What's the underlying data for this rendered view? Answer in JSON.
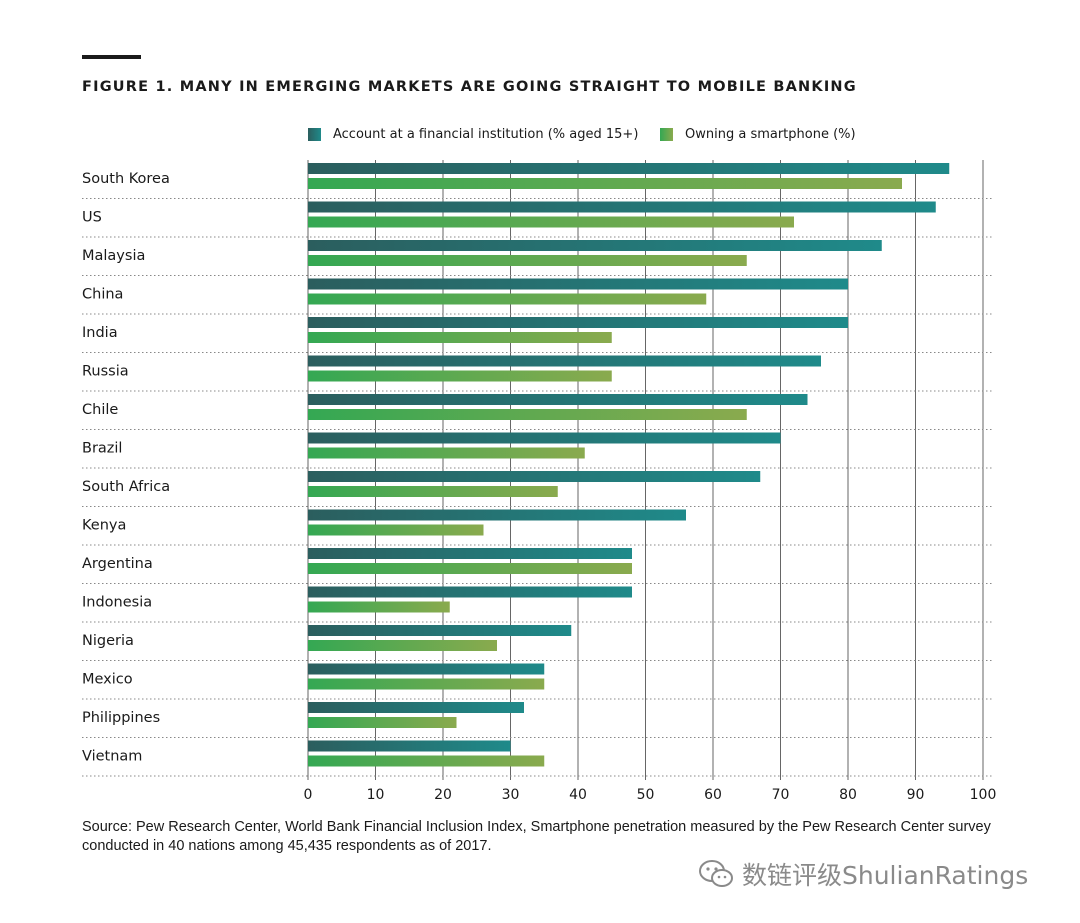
{
  "figure": {
    "title": "FIGURE 1. MANY IN EMERGING MARKETS ARE GOING STRAIGHT TO MOBILE BANKING",
    "source": "Source: Pew Research Center, World Bank Financial Inclusion Index, Smartphone penetration measured by the Pew Research Center survey conducted in 40 nations among 45,435 respondents as of 2017."
  },
  "watermark": {
    "text": "数链评级ShulianRatings",
    "icon": "wechat-icon"
  },
  "colors": {
    "account_dark": "#2b5e5e",
    "account_light": "#1f8a8a",
    "smartphone_dark": "#34a853",
    "smartphone_light": "#8aaa4e",
    "grid": "#666666",
    "separator": "#888888"
  },
  "chart_data": {
    "type": "bar",
    "orientation": "horizontal",
    "title": "FIGURE 1. MANY IN EMERGING MARKETS ARE GOING STRAIGHT TO MOBILE BANKING",
    "xlabel": "",
    "ylabel": "",
    "xlim": [
      0,
      100
    ],
    "xticks": [
      0,
      10,
      20,
      30,
      40,
      50,
      60,
      70,
      80,
      90,
      100
    ],
    "grid": true,
    "legend_position": "top",
    "categories": [
      "South Korea",
      "US",
      "Malaysia",
      "China",
      "India",
      "Russia",
      "Chile",
      "Brazil",
      "South Africa",
      "Kenya",
      "Argentina",
      "Indonesia",
      "Nigeria",
      "Mexico",
      "Philippines",
      "Vietnam"
    ],
    "series": [
      {
        "name": "Account at a financial institution (% aged 15+)",
        "values": [
          95,
          93,
          85,
          80,
          80,
          76,
          74,
          70,
          67,
          56,
          48,
          48,
          39,
          35,
          32,
          30
        ]
      },
      {
        "name": "Owning a smartphone (%)",
        "values": [
          88,
          72,
          65,
          59,
          45,
          45,
          65,
          41,
          37,
          26,
          48,
          21,
          28,
          35,
          22,
          35
        ]
      }
    ]
  }
}
